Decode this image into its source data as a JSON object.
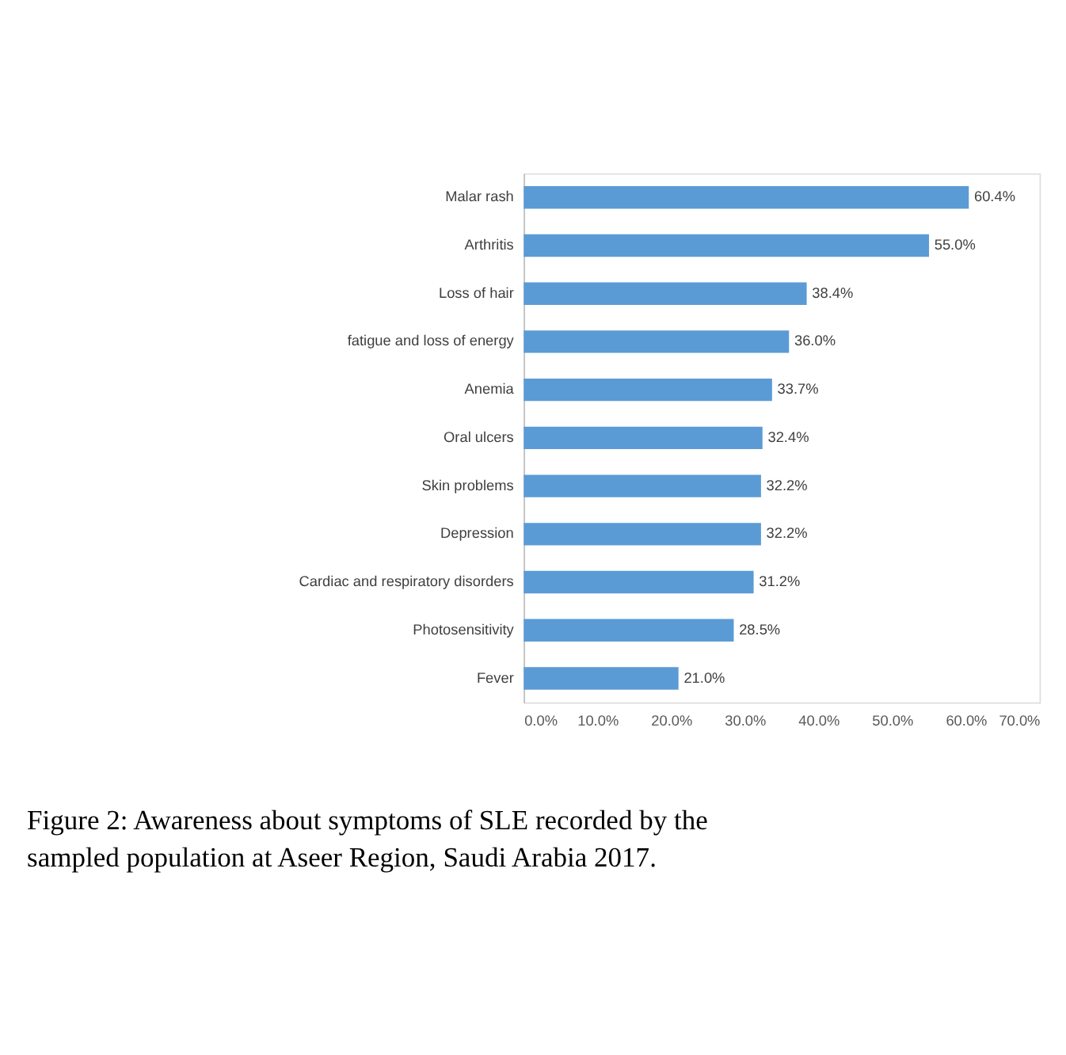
{
  "chart_data": {
    "type": "bar",
    "orientation": "horizontal",
    "categories": [
      "Malar rash",
      "Arthritis",
      "Loss of hair",
      "fatigue and loss of energy",
      "Anemia",
      "Oral ulcers",
      "Skin problems",
      "Depression",
      "Cardiac and respiratory disorders",
      "Photosensitivity",
      "Fever"
    ],
    "values": [
      60.4,
      55.0,
      38.4,
      36.0,
      33.7,
      32.4,
      32.2,
      32.2,
      31.2,
      28.5,
      21.0
    ],
    "value_labels": [
      "60.4%",
      "55.0%",
      "38.4%",
      "36.0%",
      "33.7%",
      "32.4%",
      "32.2%",
      "32.2%",
      "31.2%",
      "28.5%",
      "21.0%"
    ],
    "color": "#5b9bd5",
    "xlim": [
      0,
      70
    ],
    "xticks": [
      {
        "value": 0,
        "label": "0.0%"
      },
      {
        "value": 10,
        "label": "10.0%"
      },
      {
        "value": 20,
        "label": "20.0%"
      },
      {
        "value": 30,
        "label": "30.0%"
      },
      {
        "value": 40,
        "label": "40.0%"
      },
      {
        "value": 50,
        "label": "50.0%"
      },
      {
        "value": 60,
        "label": "60.0%"
      },
      {
        "value": 70,
        "label": "70.0%"
      }
    ],
    "grid": false,
    "annotations": [
      "Figure 2: Awareness about symptoms of SLE recorded by the sampled population at Aseer Region, Saudi Arabia 2017."
    ]
  }
}
